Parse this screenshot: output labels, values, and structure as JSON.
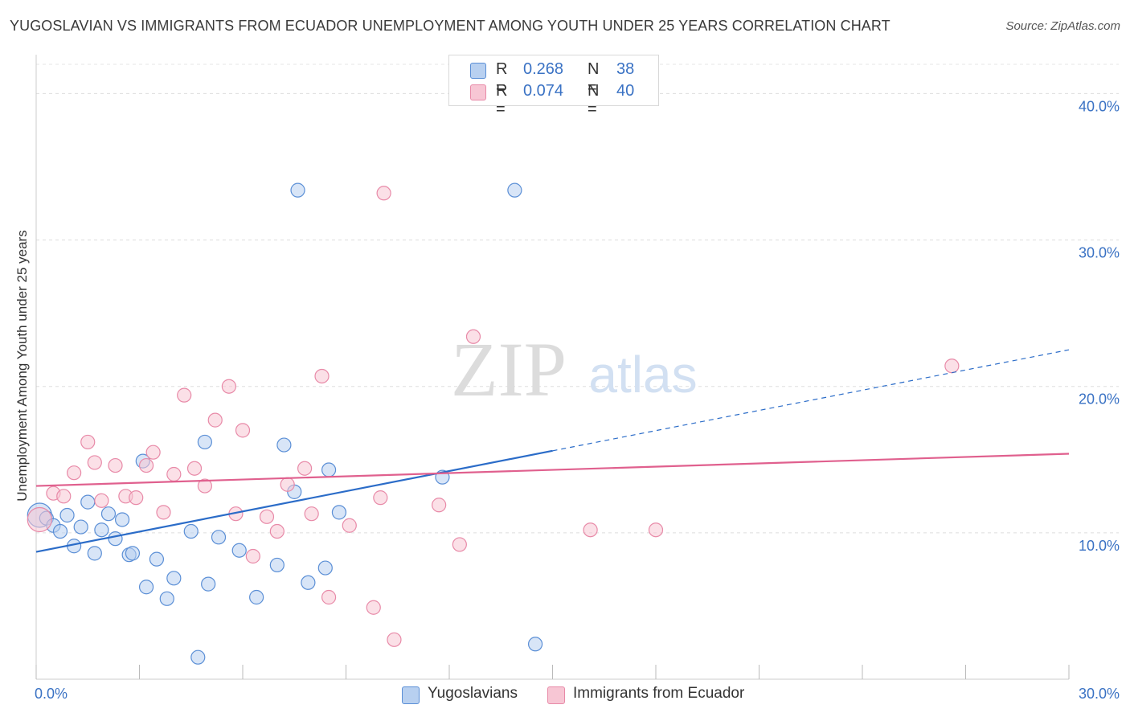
{
  "header": {
    "title": "YUGOSLAVIAN VS IMMIGRANTS FROM ECUADOR UNEMPLOYMENT AMONG YOUTH UNDER 25 YEARS CORRELATION CHART",
    "source": "Source: ZipAtlas.com"
  },
  "watermark": {
    "zip": "ZIP",
    "atlas": "atlas"
  },
  "legend_top": {
    "r_label": "R =",
    "n_label": "N =",
    "series1": {
      "r": "0.268",
      "n": "38"
    },
    "series2": {
      "r": "0.074",
      "n": "40"
    }
  },
  "colors": {
    "blue_fill": "#b8d0f0",
    "blue_stroke": "#5b8fd6",
    "blue_line": "#2b6cc8",
    "pink_fill": "#f7c6d4",
    "pink_stroke": "#e88aa8",
    "pink_line": "#e0608e",
    "tick_label": "#3a72c4"
  },
  "chart_data": {
    "type": "scatter",
    "title": "YUGOSLAVIAN VS IMMIGRANTS FROM ECUADOR UNEMPLOYMENT AMONG YOUTH UNDER 25 YEARS CORRELATION CHART",
    "xlabel": "",
    "ylabel": "Unemployment Among Youth under 25 years",
    "xlim": [
      0,
      30
    ],
    "ylim": [
      0,
      42
    ],
    "x_tick_labels": [
      "0.0%",
      "30.0%"
    ],
    "y_ticks": [
      10,
      20,
      30,
      40
    ],
    "y_tick_labels": [
      "10.0%",
      "20.0%",
      "30.0%",
      "40.0%"
    ],
    "grid": true,
    "legend_position": "bottom",
    "series": [
      {
        "name": "Yugoslavians",
        "color": "#5b8fd6",
        "points": [
          [
            0.1,
            11.2
          ],
          [
            0.3,
            11.0
          ],
          [
            0.5,
            10.5
          ],
          [
            0.7,
            10.1
          ],
          [
            0.9,
            11.2
          ],
          [
            1.1,
            9.1
          ],
          [
            1.3,
            10.4
          ],
          [
            1.5,
            12.1
          ],
          [
            1.7,
            8.6
          ],
          [
            1.9,
            10.2
          ],
          [
            2.1,
            11.3
          ],
          [
            2.3,
            9.6
          ],
          [
            2.5,
            10.9
          ],
          [
            2.7,
            8.5
          ],
          [
            2.8,
            8.6
          ],
          [
            3.1,
            14.9
          ],
          [
            3.2,
            6.3
          ],
          [
            3.5,
            8.2
          ],
          [
            3.8,
            5.5
          ],
          [
            4.0,
            6.9
          ],
          [
            4.5,
            10.1
          ],
          [
            4.7,
            1.5
          ],
          [
            4.9,
            16.2
          ],
          [
            5.0,
            6.5
          ],
          [
            5.3,
            9.7
          ],
          [
            5.9,
            8.8
          ],
          [
            6.4,
            5.6
          ],
          [
            7.0,
            7.8
          ],
          [
            7.2,
            16.0
          ],
          [
            7.5,
            12.8
          ],
          [
            7.6,
            33.4
          ],
          [
            7.9,
            6.6
          ],
          [
            8.4,
            7.6
          ],
          [
            8.5,
            14.3
          ],
          [
            8.8,
            11.4
          ],
          [
            11.8,
            13.8
          ],
          [
            13.9,
            33.4
          ],
          [
            14.5,
            2.4
          ]
        ]
      },
      {
        "name": "Immigrants from Ecuador",
        "color": "#e88aa8",
        "points": [
          [
            0.1,
            10.9
          ],
          [
            0.5,
            12.7
          ],
          [
            0.8,
            12.5
          ],
          [
            1.1,
            14.1
          ],
          [
            1.5,
            16.2
          ],
          [
            1.7,
            14.8
          ],
          [
            1.9,
            12.2
          ],
          [
            2.3,
            14.6
          ],
          [
            2.6,
            12.5
          ],
          [
            2.9,
            12.4
          ],
          [
            3.2,
            14.6
          ],
          [
            3.4,
            15.5
          ],
          [
            3.7,
            11.4
          ],
          [
            4.0,
            14.0
          ],
          [
            4.3,
            19.4
          ],
          [
            4.6,
            14.4
          ],
          [
            4.9,
            13.2
          ],
          [
            5.2,
            17.7
          ],
          [
            5.6,
            20.0
          ],
          [
            5.8,
            11.3
          ],
          [
            6.0,
            17.0
          ],
          [
            6.3,
            8.4
          ],
          [
            6.7,
            11.1
          ],
          [
            7.0,
            10.1
          ],
          [
            7.3,
            13.3
          ],
          [
            7.8,
            14.4
          ],
          [
            8.0,
            11.3
          ],
          [
            8.3,
            20.7
          ],
          [
            8.5,
            5.6
          ],
          [
            9.1,
            10.5
          ],
          [
            9.8,
            4.9
          ],
          [
            10.0,
            12.4
          ],
          [
            10.1,
            33.2
          ],
          [
            10.4,
            2.7
          ],
          [
            11.7,
            11.9
          ],
          [
            12.3,
            9.2
          ],
          [
            12.7,
            23.4
          ],
          [
            16.1,
            10.2
          ],
          [
            18.0,
            10.2
          ],
          [
            26.6,
            21.4
          ]
        ]
      }
    ],
    "trendlines": [
      {
        "series": "Yugoslavians",
        "x0": 0.0,
        "y0": 8.7,
        "x1": 15.0,
        "y1": 15.6,
        "dashed_to_x": 30.0,
        "dashed_to_y": 22.5
      },
      {
        "series": "Immigrants from Ecuador",
        "x0": 0.0,
        "y0": 13.2,
        "x1": 30.0,
        "y1": 15.4
      }
    ]
  }
}
